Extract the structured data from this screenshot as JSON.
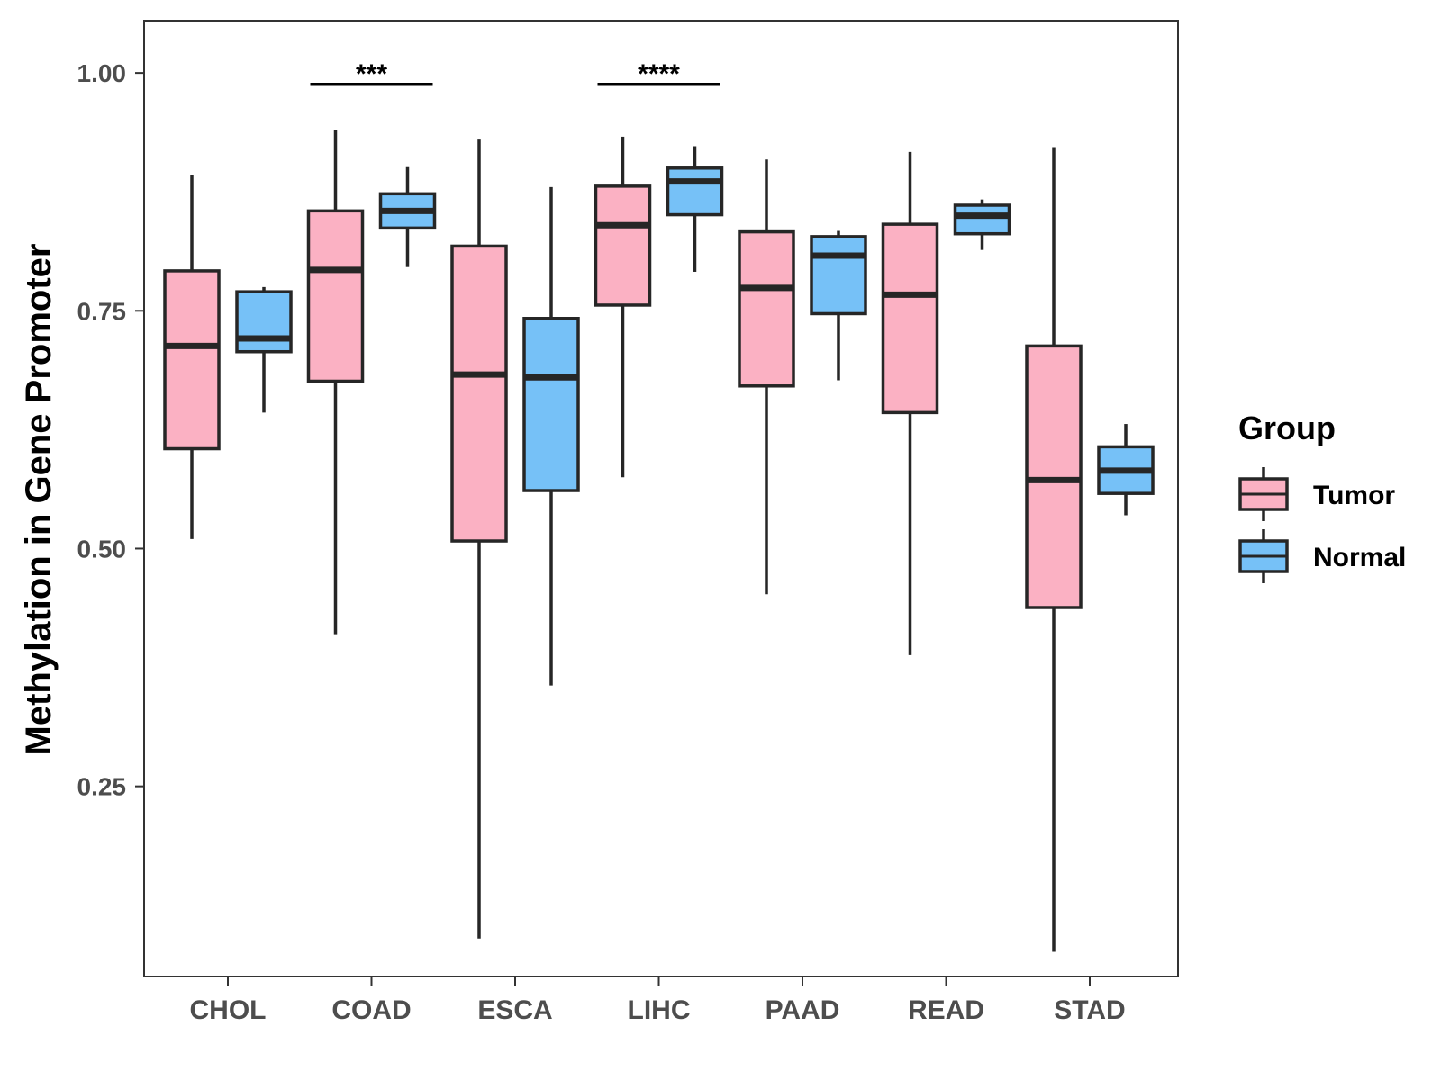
{
  "chart_data": {
    "type": "boxplot",
    "ylabel": "Methylation in Gene Promoter",
    "xlabel": "",
    "ylim": [
      0.05,
      1.055
    ],
    "yticks": [
      0.25,
      0.5,
      0.75,
      1.0
    ],
    "ytick_labels": [
      "0.25",
      "0.50",
      "0.75",
      "1.00"
    ],
    "categories": [
      "CHOL",
      "COAD",
      "ESCA",
      "LIHC",
      "PAAD",
      "READ",
      "STAD"
    ],
    "legend": {
      "title": "Group",
      "position": "right",
      "entries": [
        {
          "name": "Tumor",
          "color": "#FBB1C3"
        },
        {
          "name": "Normal",
          "color": "#76C1F7"
        }
      ]
    },
    "series": [
      {
        "name": "Tumor",
        "color": "#FBB1C3",
        "boxes": [
          {
            "min": 0.51,
            "q1": 0.605,
            "median": 0.713,
            "q3": 0.792,
            "max": 0.893
          },
          {
            "min": 0.41,
            "q1": 0.676,
            "median": 0.793,
            "q3": 0.855,
            "max": 0.94
          },
          {
            "min": 0.09,
            "q1": 0.508,
            "median": 0.683,
            "q3": 0.818,
            "max": 0.93
          },
          {
            "min": 0.575,
            "q1": 0.756,
            "median": 0.84,
            "q3": 0.881,
            "max": 0.933
          },
          {
            "min": 0.452,
            "q1": 0.671,
            "median": 0.774,
            "q3": 0.833,
            "max": 0.909
          },
          {
            "min": 0.388,
            "q1": 0.643,
            "median": 0.767,
            "q3": 0.841,
            "max": 0.917
          },
          {
            "min": 0.076,
            "q1": 0.438,
            "median": 0.572,
            "q3": 0.713,
            "max": 0.922
          }
        ]
      },
      {
        "name": "Normal",
        "color": "#76C1F7",
        "boxes": [
          {
            "min": 0.643,
            "q1": 0.707,
            "median": 0.721,
            "q3": 0.77,
            "max": 0.775
          },
          {
            "min": 0.796,
            "q1": 0.837,
            "median": 0.855,
            "q3": 0.873,
            "max": 0.901
          },
          {
            "min": 0.356,
            "q1": 0.561,
            "median": 0.68,
            "q3": 0.742,
            "max": 0.88
          },
          {
            "min": 0.791,
            "q1": 0.851,
            "median": 0.886,
            "q3": 0.9,
            "max": 0.923
          },
          {
            "min": 0.677,
            "q1": 0.747,
            "median": 0.808,
            "q3": 0.828,
            "max": 0.834
          },
          {
            "min": 0.814,
            "q1": 0.831,
            "median": 0.85,
            "q3": 0.861,
            "max": 0.867
          },
          {
            "min": 0.535,
            "q1": 0.558,
            "median": 0.582,
            "q3": 0.607,
            "max": 0.631
          }
        ]
      }
    ],
    "significance": [
      {
        "category": "COAD",
        "label": "***",
        "y": 0.988
      },
      {
        "category": "LIHC",
        "label": "****",
        "y": 0.988
      }
    ]
  }
}
